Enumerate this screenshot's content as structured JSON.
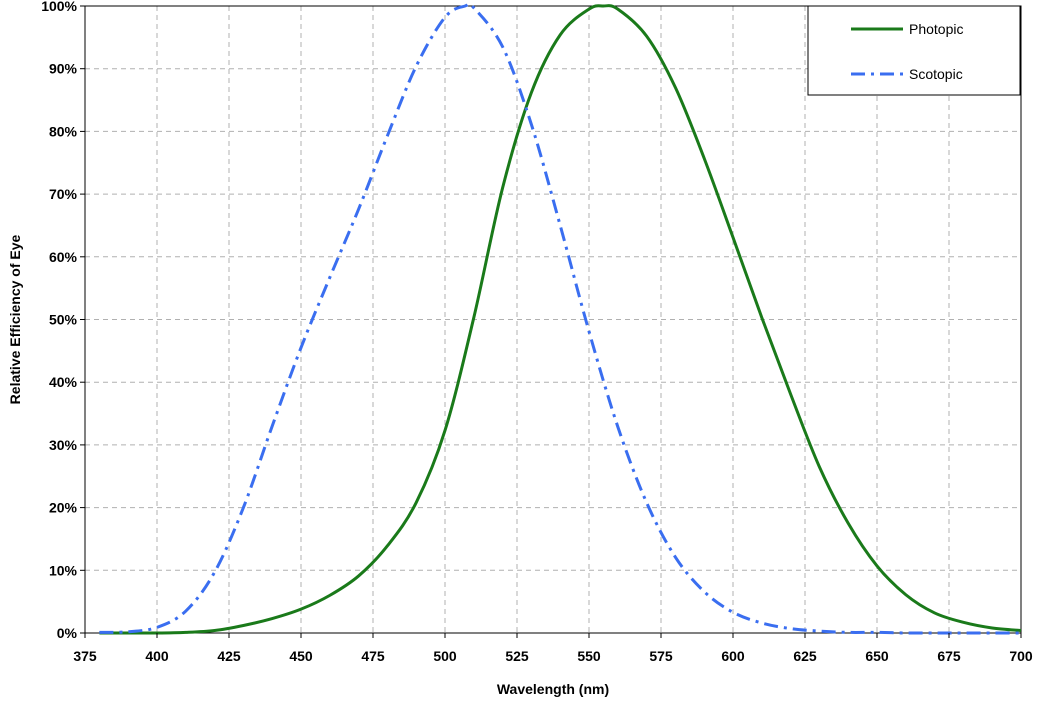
{
  "chart_data": {
    "type": "line",
    "title": "",
    "xlabel": "Wavelength (nm)",
    "ylabel": "Relative Efficiency of Eye",
    "xlim": [
      375,
      700
    ],
    "ylim": [
      0,
      100
    ],
    "x_ticks": [
      375,
      400,
      425,
      450,
      475,
      500,
      525,
      550,
      575,
      600,
      625,
      650,
      675,
      700
    ],
    "y_ticks": [
      0,
      10,
      20,
      30,
      40,
      50,
      60,
      70,
      80,
      90,
      100
    ],
    "y_tick_labels": [
      "0%",
      "10%",
      "20%",
      "30%",
      "40%",
      "50%",
      "60%",
      "70%",
      "80%",
      "90%",
      "100%"
    ],
    "grid": true,
    "legend_position": "top-right",
    "series": [
      {
        "name": "Photopic",
        "color": "#1a7a1a",
        "style": "solid",
        "x": [
          380,
          390,
          400,
          410,
          420,
          430,
          440,
          450,
          460,
          470,
          480,
          490,
          500,
          510,
          520,
          530,
          540,
          550,
          555,
          560,
          570,
          580,
          590,
          600,
          610,
          620,
          630,
          640,
          650,
          660,
          670,
          680,
          690,
          700
        ],
        "y": [
          0.0,
          0.0,
          0.0,
          0.1,
          0.4,
          1.2,
          2.3,
          3.8,
          6.0,
          9.1,
          13.9,
          20.8,
          32.3,
          50.3,
          71.0,
          86.2,
          95.4,
          99.5,
          100.0,
          99.5,
          95.2,
          87.0,
          75.7,
          63.1,
          50.3,
          38.1,
          26.5,
          17.5,
          10.7,
          6.1,
          3.2,
          1.7,
          0.8,
          0.4
        ]
      },
      {
        "name": "Scotopic",
        "color": "#3a6ef0",
        "style": "dashdot",
        "x": [
          380,
          390,
          400,
          410,
          420,
          430,
          440,
          450,
          460,
          470,
          480,
          490,
          500,
          507,
          510,
          520,
          530,
          540,
          550,
          560,
          570,
          580,
          590,
          600,
          610,
          620,
          630,
          640,
          650,
          660,
          670,
          680,
          690,
          700
        ],
        "y": [
          0.1,
          0.2,
          0.9,
          3.5,
          9.7,
          20.0,
          33.0,
          45.5,
          56.7,
          67.6,
          79.3,
          90.4,
          98.2,
          100.0,
          99.7,
          93.5,
          81.1,
          65.0,
          48.1,
          32.9,
          20.8,
          12.1,
          6.6,
          3.3,
          1.6,
          0.7,
          0.3,
          0.1,
          0.1,
          0.0,
          0.0,
          0.0,
          0.0,
          0.0
        ]
      }
    ]
  }
}
